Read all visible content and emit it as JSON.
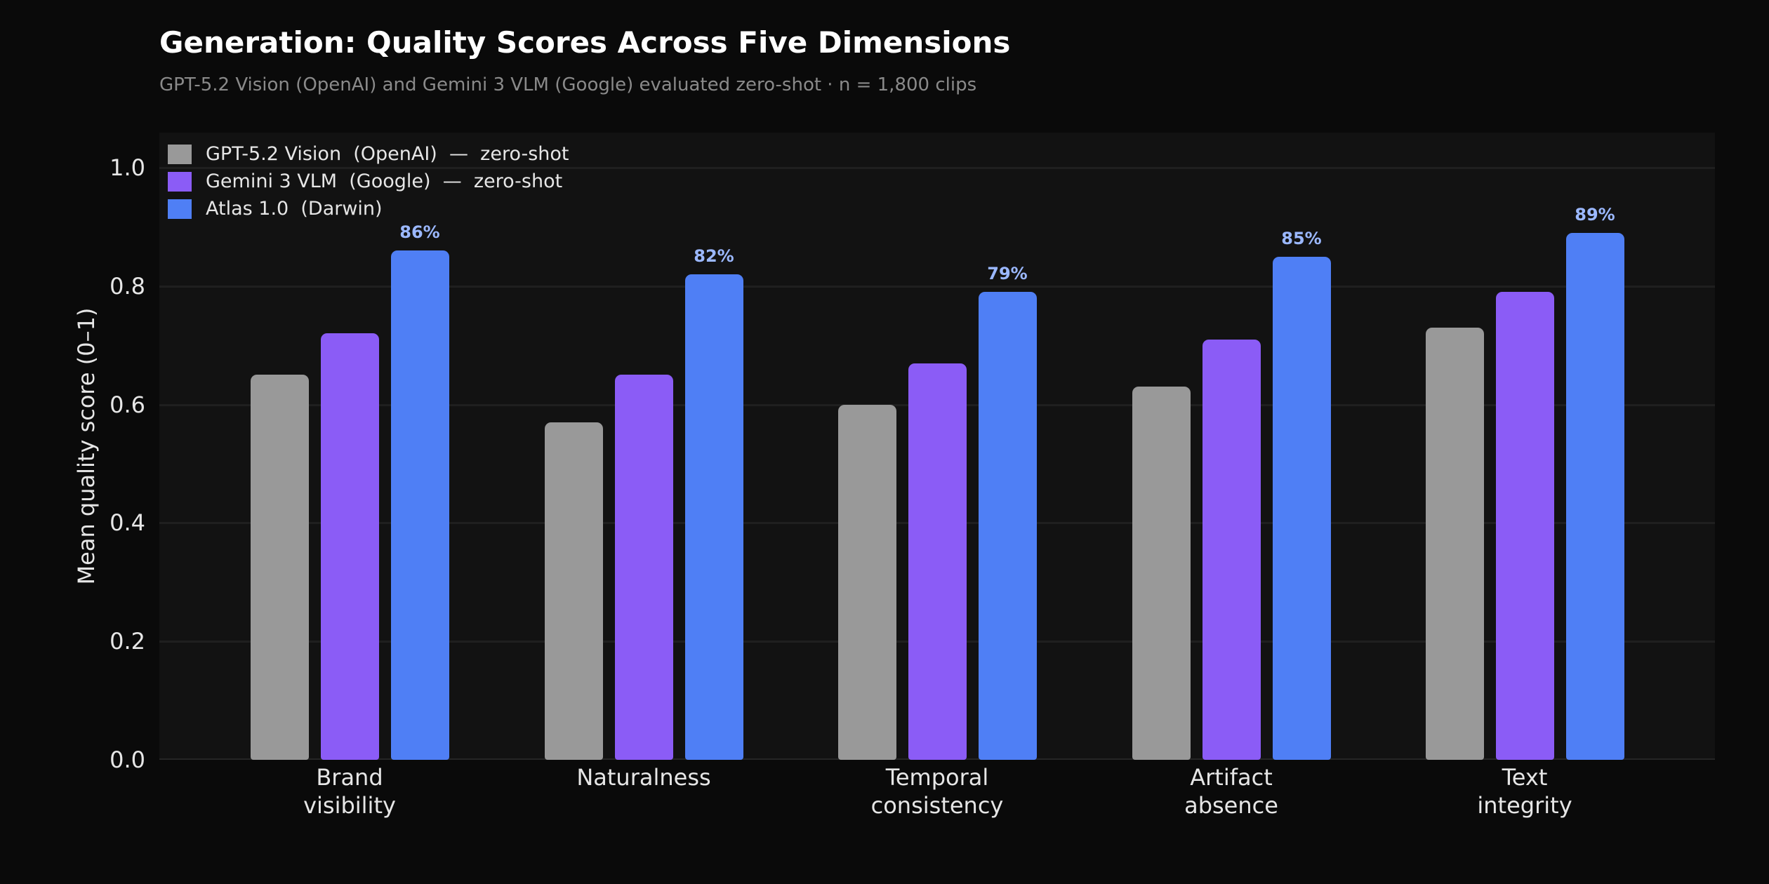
{
  "header": {
    "title": "Generation: Quality Scores Across Five Dimensions",
    "subtitle": "GPT-5.2 Vision (OpenAI) and Gemini 3 VLM (Google) evaluated zero-shot  ·  n = 1,800 clips"
  },
  "axes": {
    "ylabel": "Mean quality score (0–1)",
    "yticks": [
      "0.0",
      "0.2",
      "0.4",
      "0.6",
      "0.8",
      "1.0"
    ]
  },
  "legend": [
    {
      "label": "GPT-5.2 Vision  (OpenAI)  —  zero-shot",
      "color": "#999999"
    },
    {
      "label": "Gemini 3 VLM  (Google)  —  zero-shot",
      "color": "#8b5cf6"
    },
    {
      "label": "Atlas 1.0  (Darwin)",
      "color": "#4f7ff5"
    }
  ],
  "categories": [
    {
      "line1": "Brand",
      "line2": "visibility"
    },
    {
      "line1": "Naturalness",
      "line2": ""
    },
    {
      "line1": "Temporal",
      "line2": "consistency"
    },
    {
      "line1": "Artifact",
      "line2": "absence"
    },
    {
      "line1": "Text",
      "line2": "integrity"
    }
  ],
  "value_labels": [
    "86%",
    "82%",
    "79%",
    "85%",
    "89%"
  ],
  "chart_data": {
    "type": "bar",
    "title": "Generation: Quality Scores Across Five Dimensions",
    "subtitle": "GPT-5.2 Vision (OpenAI) and Gemini 3 VLM (Google) evaluated zero-shot  ·  n = 1,800 clips",
    "categories": [
      "Brand visibility",
      "Naturalness",
      "Temporal consistency",
      "Artifact absence",
      "Text integrity"
    ],
    "series": [
      {
        "name": "GPT-5.2 Vision  (OpenAI)  —  zero-shot",
        "color": "#999999",
        "values": [
          0.65,
          0.57,
          0.6,
          0.63,
          0.73
        ]
      },
      {
        "name": "Gemini 3 VLM  (Google)  —  zero-shot",
        "color": "#8b5cf6",
        "values": [
          0.72,
          0.65,
          0.67,
          0.71,
          0.79
        ]
      },
      {
        "name": "Atlas 1.0  (Darwin)",
        "color": "#4f7ff5",
        "values": [
          0.86,
          0.82,
          0.79,
          0.85,
          0.89
        ]
      }
    ],
    "annotations": {
      "series": "Atlas 1.0  (Darwin)",
      "labels": [
        "86%",
        "82%",
        "79%",
        "85%",
        "89%"
      ]
    },
    "xlabel": "",
    "ylabel": "Mean quality score (0–1)",
    "ylim": [
      0,
      1.06
    ],
    "yticks": [
      0.0,
      0.2,
      0.4,
      0.6,
      0.8,
      1.0
    ],
    "grid": true,
    "legend_position": "upper left"
  }
}
